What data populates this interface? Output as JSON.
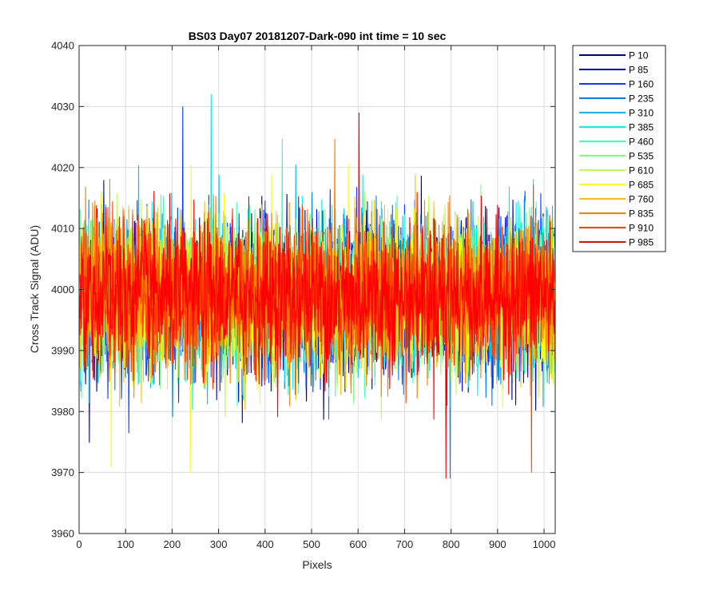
{
  "chart_data": {
    "type": "line",
    "title": "BS03 Day07 20181207-Dark-090 int time = 10 sec",
    "xlabel": "Pixels",
    "ylabel": "Cross Track Signal (ADU)",
    "xlim": [
      0,
      1024
    ],
    "ylim": [
      3960,
      4040
    ],
    "xticks": [
      0,
      100,
      200,
      300,
      400,
      500,
      600,
      700,
      800,
      900,
      1000
    ],
    "yticks": [
      3960,
      3970,
      3980,
      3990,
      4000,
      4010,
      4020,
      4030,
      4040
    ],
    "grid": true,
    "legend_position": "outside-top-right",
    "x_points": 1024,
    "signal_center": 3999,
    "signal_sigma": 6,
    "series": [
      {
        "name": "P 10",
        "color": "#00008f"
      },
      {
        "name": "P 85",
        "color": "#0000d9"
      },
      {
        "name": "P 160",
        "color": "#0040ff"
      },
      {
        "name": "P 235",
        "color": "#0080ff"
      },
      {
        "name": "P 310",
        "color": "#00bfff"
      },
      {
        "name": "P 385",
        "color": "#00f2f2"
      },
      {
        "name": "P 460",
        "color": "#40ffbf"
      },
      {
        "name": "P 535",
        "color": "#80ff80"
      },
      {
        "name": "P 610",
        "color": "#bfff40"
      },
      {
        "name": "P 685",
        "color": "#ffff00"
      },
      {
        "name": "P 760",
        "color": "#ffbf00"
      },
      {
        "name": "P 835",
        "color": "#ff8000"
      },
      {
        "name": "P 910",
        "color": "#ff4000"
      },
      {
        "name": "P 985",
        "color": "#ff0000"
      }
    ],
    "extremes": [
      {
        "series": "P 160",
        "x": 222,
        "y": 4030
      },
      {
        "series": "P 385",
        "x": 283,
        "y": 4032
      },
      {
        "series": "P 985",
        "x": 601,
        "y": 4029
      },
      {
        "series": "P 235",
        "x": 797,
        "y": 3969
      },
      {
        "series": "P 985",
        "x": 788,
        "y": 3969
      },
      {
        "series": "P 910",
        "x": 972,
        "y": 3970
      },
      {
        "series": "P 685",
        "x": 238,
        "y": 3970
      },
      {
        "series": "P 685",
        "x": 68,
        "y": 3971
      }
    ]
  }
}
